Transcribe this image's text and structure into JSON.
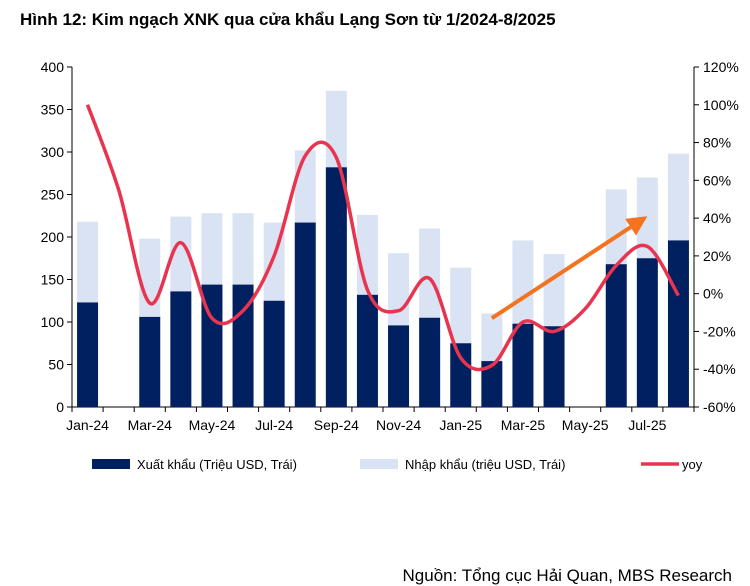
{
  "title": "Hình 12: Kim ngạch XNK qua cửa khẩu Lạng Sơn từ 1/2024-8/2025",
  "source": "Nguồn: Tổng cục Hải Quan, MBS Research",
  "chart_data": {
    "type": "bar",
    "stacked": true,
    "categories": [
      "Jan-24",
      "Feb-24",
      "Mar-24",
      "Apr-24",
      "May-24",
      "Jun-24",
      "Jul-24",
      "Aug-24",
      "Sep-24",
      "Oct-24",
      "Nov-24",
      "Dec-24",
      "Jan-25",
      "Feb-25",
      "Mar-25",
      "Apr-25",
      "May-25",
      "Jun-25",
      "Jul-25",
      "Aug-25"
    ],
    "x_tick_labels": [
      "Jan-24",
      "Mar-24",
      "May-24",
      "Jul-24",
      "Sep-24",
      "Nov-24",
      "Jan-25",
      "Mar-25",
      "May-25",
      "Jul-25"
    ],
    "series": [
      {
        "name": "Xuất khẩu (Triệu USD, Trái)",
        "axis": "left",
        "color": "#002060",
        "values": [
          123,
          null,
          106,
          136,
          144,
          144,
          125,
          217,
          282,
          132,
          96,
          105,
          75,
          54,
          98,
          95,
          null,
          168,
          175,
          196
        ]
      },
      {
        "name": "Nhập khẩu (triệu USD, Trái)",
        "axis": "left",
        "color": "#d9e3f3",
        "values": [
          95,
          null,
          92,
          88,
          84,
          84,
          92,
          85,
          90,
          94,
          85,
          105,
          89,
          56,
          98,
          85,
          null,
          88,
          95,
          102
        ]
      },
      {
        "name": "yoy",
        "type": "line",
        "axis": "right",
        "color": "#e8344e",
        "values": [
          100,
          55,
          -5,
          27,
          -13,
          -9,
          20,
          73,
          72,
          2,
          -9,
          8,
          -34,
          -38,
          -15,
          -20,
          -8,
          15,
          25,
          -1
        ]
      }
    ],
    "ylim_left": [
      0,
      400
    ],
    "yticks_left": [
      "0",
      "50",
      "100",
      "150",
      "200",
      "250",
      "300",
      "350",
      "400"
    ],
    "ylim_right": [
      -60,
      120
    ],
    "yticks_right": [
      "-60%",
      "-40%",
      "-20%",
      "0%",
      "20%",
      "40%",
      "60%",
      "80%",
      "100%",
      "120%"
    ],
    "trend_arrow": {
      "color": "#f4731f",
      "from": {
        "x": "Feb-25",
        "y_right": -13
      },
      "to": {
        "x": "Jul-25",
        "y_right": 41
      }
    },
    "grid": false,
    "legend_position": "bottom"
  }
}
